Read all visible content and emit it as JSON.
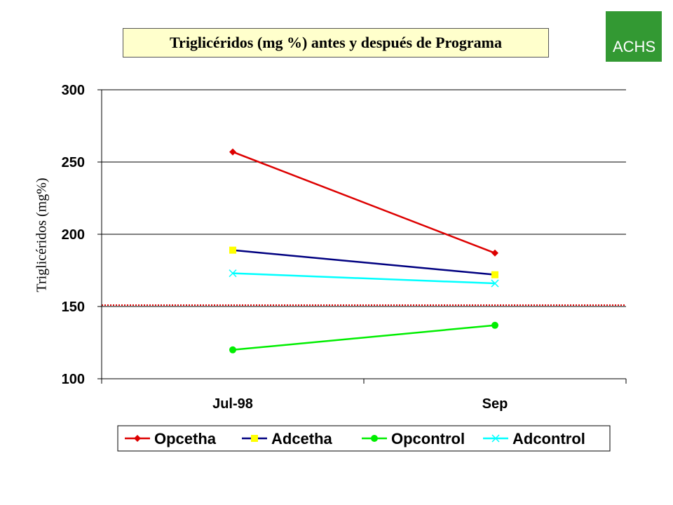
{
  "logo_text": "ACHS",
  "chart_data": {
    "type": "line",
    "title": "Triglicéridos (mg %) antes y después de Programa",
    "ylabel": "Triglicéridos (mg%)",
    "xlabel": "",
    "categories": [
      "Jul-98",
      "Sep"
    ],
    "ylim": [
      100,
      300
    ],
    "yticks": [
      100,
      150,
      200,
      250,
      300
    ],
    "grid": true,
    "legend_position": "bottom",
    "reference_line": {
      "value": 151,
      "color": "#dd0000",
      "style": "dotted"
    },
    "series": [
      {
        "name": "Opcetha",
        "values": [
          257,
          187
        ],
        "color": "#dd0000",
        "marker": "diamond"
      },
      {
        "name": "Adcetha",
        "values": [
          189,
          172
        ],
        "color": "#000080",
        "marker_color": "#ffff00",
        "marker": "square"
      },
      {
        "name": "Opcontrol",
        "values": [
          120,
          137
        ],
        "color": "#00ee00",
        "marker": "circle"
      },
      {
        "name": "Adcontrol",
        "values": [
          173,
          166
        ],
        "color": "#00ffff",
        "marker": "x"
      }
    ]
  }
}
